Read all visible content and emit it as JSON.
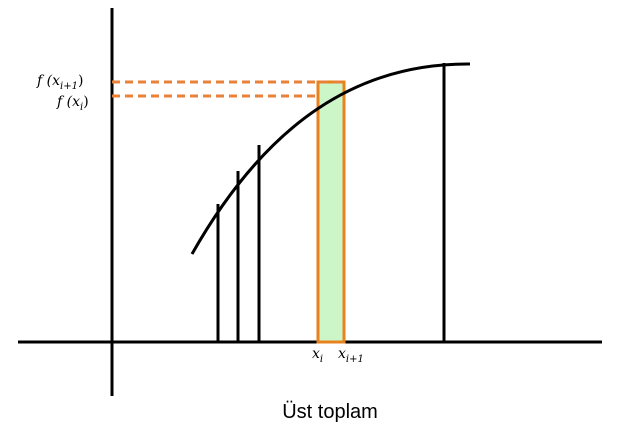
{
  "caption": "Üst toplam",
  "labels": {
    "f_xi1_prefix": "f (x",
    "f_xi1_sub": "i+1",
    "f_xi1_suffix": ")",
    "f_xi_prefix": "f (x",
    "f_xi_sub": "i",
    "f_xi_suffix": ")",
    "xi_main": "x",
    "xi_sub": "i",
    "xi1_main": "x",
    "xi1_sub": "i+1"
  },
  "colors": {
    "axis": "#000000",
    "curve": "#000000",
    "highlight_stroke": "#e8821e",
    "highlight_fill": "#ccf5c8",
    "dashed_guide": "#e8823a"
  }
}
